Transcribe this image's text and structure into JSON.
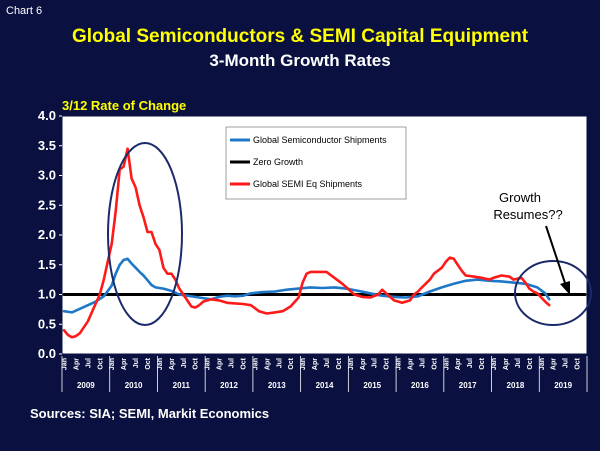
{
  "header": {
    "chart_number": "Chart 6",
    "title": "Global Semiconductors & SEMI Capital Equipment",
    "subtitle": "3-Month Growth Rates"
  },
  "footer": {
    "sources": "Sources: SIA; SEMI, Markit Economics"
  },
  "colors": {
    "background": "#0a1140",
    "plot": "#ffffff",
    "title": "#ffff00",
    "semi_shipments": "#1f77c8",
    "zero_growth": "#000000",
    "semi_eq": "#ff1a1a",
    "ellipse": "#1a2a6a"
  },
  "chart_data": {
    "type": "line",
    "ylabel": "3/12 Rate of Change",
    "ylim": [
      0,
      4
    ],
    "yticks": [
      "0.0",
      "0.5",
      "1.0",
      "1.5",
      "2.0",
      "2.5",
      "3.0",
      "3.5",
      "4.0"
    ],
    "month_labels": [
      "Jan",
      "Apr",
      "Jul",
      "Oct"
    ],
    "years": [
      "2009",
      "2010",
      "2011",
      "2012",
      "2013",
      "2014",
      "2015",
      "2016",
      "2017",
      "2018",
      "2019"
    ],
    "x_range": [
      "2009-01",
      "2019-12"
    ],
    "grid": false,
    "legend_position": "top-center",
    "series": [
      {
        "name": "Global Semiconductor Shipments",
        "color": "#1f77c8",
        "points": [
          [
            "2009-01",
            0.72
          ],
          [
            "2009-03",
            0.7
          ],
          [
            "2009-05",
            0.76
          ],
          [
            "2009-07",
            0.82
          ],
          [
            "2009-09",
            0.88
          ],
          [
            "2009-11",
            0.97
          ],
          [
            "2010-01",
            1.15
          ],
          [
            "2010-02",
            1.35
          ],
          [
            "2010-03",
            1.5
          ],
          [
            "2010-04",
            1.58
          ],
          [
            "2010-05",
            1.6
          ],
          [
            "2010-06",
            1.52
          ],
          [
            "2010-07",
            1.45
          ],
          [
            "2010-08",
            1.38
          ],
          [
            "2010-09",
            1.32
          ],
          [
            "2010-10",
            1.24
          ],
          [
            "2010-11",
            1.16
          ],
          [
            "2010-12",
            1.12
          ],
          [
            "2011-02",
            1.1
          ],
          [
            "2011-04",
            1.06
          ],
          [
            "2011-06",
            1.0
          ],
          [
            "2011-08",
            0.98
          ],
          [
            "2011-10",
            0.96
          ],
          [
            "2011-12",
            0.94
          ],
          [
            "2012-02",
            0.92
          ],
          [
            "2012-04",
            0.96
          ],
          [
            "2012-06",
            0.98
          ],
          [
            "2012-08",
            0.97
          ],
          [
            "2012-10",
            0.98
          ],
          [
            "2012-12",
            1.02
          ],
          [
            "2013-03",
            1.04
          ],
          [
            "2013-06",
            1.05
          ],
          [
            "2013-09",
            1.08
          ],
          [
            "2013-12",
            1.1
          ],
          [
            "2014-03",
            1.12
          ],
          [
            "2014-06",
            1.11
          ],
          [
            "2014-09",
            1.12
          ],
          [
            "2014-12",
            1.1
          ],
          [
            "2015-03",
            1.06
          ],
          [
            "2015-06",
            1.02
          ],
          [
            "2015-09",
            0.98
          ],
          [
            "2015-12",
            0.96
          ],
          [
            "2016-03",
            0.95
          ],
          [
            "2016-06",
            0.97
          ],
          [
            "2016-09",
            1.05
          ],
          [
            "2016-12",
            1.12
          ],
          [
            "2017-03",
            1.18
          ],
          [
            "2017-06",
            1.23
          ],
          [
            "2017-09",
            1.25
          ],
          [
            "2017-12",
            1.23
          ],
          [
            "2018-03",
            1.22
          ],
          [
            "2018-06",
            1.2
          ],
          [
            "2018-09",
            1.18
          ],
          [
            "2018-12",
            1.12
          ],
          [
            "2019-02",
            1.02
          ],
          [
            "2019-03",
            0.92
          ]
        ]
      },
      {
        "name": "Zero Growth",
        "color": "#000000",
        "points": [
          [
            "2009-01",
            1.0
          ],
          [
            "2019-12",
            1.0
          ]
        ]
      },
      {
        "name": "Global SEMI Eq Shipments",
        "color": "#ff1a1a",
        "points": [
          [
            "2009-01",
            0.4
          ],
          [
            "2009-02",
            0.32
          ],
          [
            "2009-03",
            0.28
          ],
          [
            "2009-04",
            0.3
          ],
          [
            "2009-05",
            0.35
          ],
          [
            "2009-06",
            0.45
          ],
          [
            "2009-07",
            0.55
          ],
          [
            "2009-08",
            0.7
          ],
          [
            "2009-09",
            0.85
          ],
          [
            "2009-10",
            1.0
          ],
          [
            "2009-11",
            1.25
          ],
          [
            "2009-12",
            1.55
          ],
          [
            "2010-01",
            1.85
          ],
          [
            "2010-02",
            2.4
          ],
          [
            "2010-03",
            3.1
          ],
          [
            "2010-04",
            3.15
          ],
          [
            "2010-05",
            3.45
          ],
          [
            "2010-06",
            2.95
          ],
          [
            "2010-07",
            2.8
          ],
          [
            "2010-08",
            2.5
          ],
          [
            "2010-09",
            2.3
          ],
          [
            "2010-10",
            2.05
          ],
          [
            "2010-11",
            2.05
          ],
          [
            "2010-12",
            1.85
          ],
          [
            "2011-01",
            1.75
          ],
          [
            "2011-02",
            1.45
          ],
          [
            "2011-03",
            1.35
          ],
          [
            "2011-04",
            1.35
          ],
          [
            "2011-05",
            1.25
          ],
          [
            "2011-06",
            1.1
          ],
          [
            "2011-07",
            1.0
          ],
          [
            "2011-08",
            0.9
          ],
          [
            "2011-09",
            0.8
          ],
          [
            "2011-10",
            0.78
          ],
          [
            "2011-11",
            0.82
          ],
          [
            "2011-12",
            0.88
          ],
          [
            "2012-02",
            0.92
          ],
          [
            "2012-04",
            0.9
          ],
          [
            "2012-06",
            0.86
          ],
          [
            "2012-08",
            0.85
          ],
          [
            "2012-10",
            0.84
          ],
          [
            "2012-12",
            0.82
          ],
          [
            "2013-02",
            0.72
          ],
          [
            "2013-04",
            0.68
          ],
          [
            "2013-06",
            0.7
          ],
          [
            "2013-08",
            0.72
          ],
          [
            "2013-10",
            0.8
          ],
          [
            "2013-12",
            0.95
          ],
          [
            "2014-01",
            1.2
          ],
          [
            "2014-02",
            1.35
          ],
          [
            "2014-03",
            1.38
          ],
          [
            "2014-05",
            1.38
          ],
          [
            "2014-07",
            1.38
          ],
          [
            "2014-09",
            1.28
          ],
          [
            "2014-11",
            1.18
          ],
          [
            "2014-12",
            1.12
          ],
          [
            "2015-02",
            1.0
          ],
          [
            "2015-04",
            0.96
          ],
          [
            "2015-06",
            0.95
          ],
          [
            "2015-08",
            1.0
          ],
          [
            "2015-09",
            1.08
          ],
          [
            "2015-10",
            1.02
          ],
          [
            "2015-12",
            0.9
          ],
          [
            "2016-02",
            0.86
          ],
          [
            "2016-04",
            0.9
          ],
          [
            "2016-05",
            1.0
          ],
          [
            "2016-06",
            1.05
          ],
          [
            "2016-07",
            1.12
          ],
          [
            "2016-09",
            1.25
          ],
          [
            "2016-10",
            1.35
          ],
          [
            "2016-12",
            1.45
          ],
          [
            "2017-01",
            1.55
          ],
          [
            "2017-02",
            1.62
          ],
          [
            "2017-03",
            1.6
          ],
          [
            "2017-04",
            1.5
          ],
          [
            "2017-05",
            1.4
          ],
          [
            "2017-06",
            1.32
          ],
          [
            "2017-08",
            1.3
          ],
          [
            "2017-10",
            1.28
          ],
          [
            "2017-12",
            1.25
          ],
          [
            "2018-01",
            1.28
          ],
          [
            "2018-03",
            1.32
          ],
          [
            "2018-05",
            1.3
          ],
          [
            "2018-06",
            1.25
          ],
          [
            "2018-08",
            1.28
          ],
          [
            "2018-09",
            1.2
          ],
          [
            "2018-10",
            1.1
          ],
          [
            "2018-11",
            1.05
          ],
          [
            "2018-12",
            1.02
          ],
          [
            "2019-01",
            0.95
          ],
          [
            "2019-02",
            0.88
          ],
          [
            "2019-03",
            0.82
          ]
        ]
      }
    ],
    "annotations": [
      {
        "text_lines": [
          "Growth",
          "Resumes??"
        ],
        "arrow_to": [
          "2019-11",
          1.0
        ]
      }
    ]
  }
}
